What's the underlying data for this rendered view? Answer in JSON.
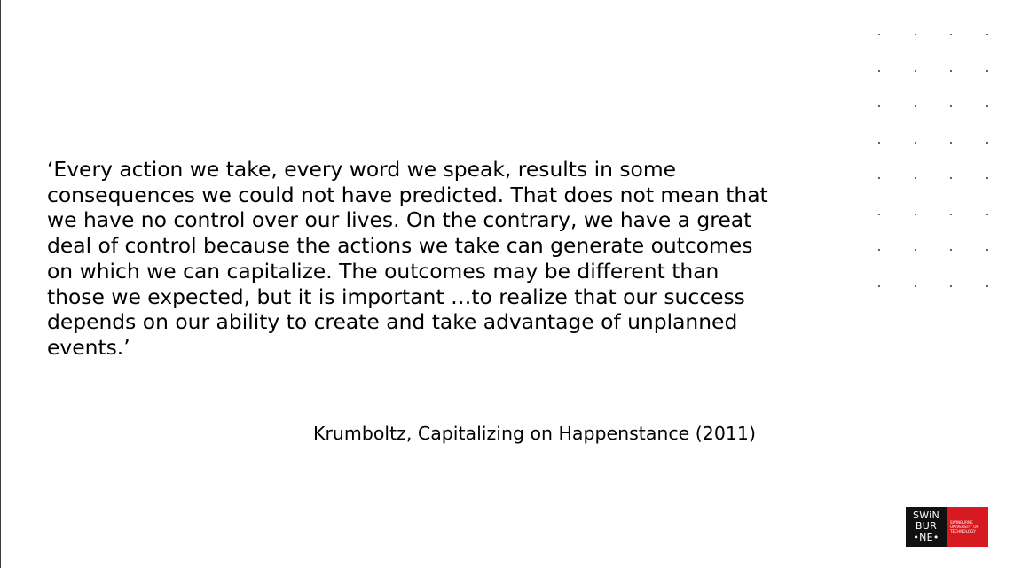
{
  "quote": {
    "lines": [
      "‘Every action we take, every word we speak, results in some",
      "consequences we could not have predicted. That does not mean that",
      "we have no control over our lives. On the contrary, we have a great",
      "deal of control because the actions we take can generate outcomes",
      "on which we can capitalize. The outcomes may be different than",
      "those we expected, but it is important …to realize that our success",
      "depends on our ability to create and take advantage of unplanned",
      "events.’"
    ]
  },
  "attribution": "Krumboltz, Capitalizing on Happenstance (2011)",
  "logo": {
    "mark_lines": [
      "SWiN",
      "BUR",
      "•NE•"
    ],
    "name_lines": [
      "SWINBURNE",
      "UNIVERSITY OF",
      "TECHNOLOGY"
    ],
    "colors": {
      "mark_bg": "#111111",
      "name_bg": "#d71920"
    }
  },
  "decoration": {
    "dot_grid": {
      "columns": 4,
      "rows": 8,
      "color": "#333333"
    }
  }
}
